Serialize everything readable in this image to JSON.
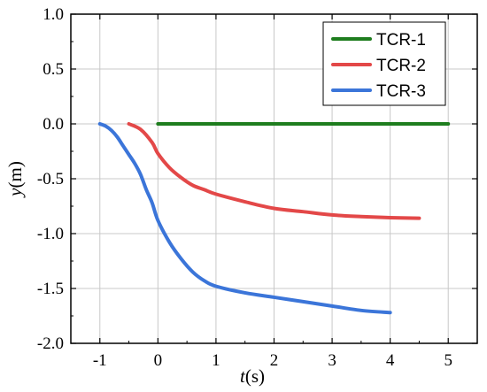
{
  "chart_data": {
    "type": "line",
    "xlabel_var": "t",
    "xlabel_unit": "(s)",
    "ylabel_var": "y",
    "ylabel_unit": "(m)",
    "xlim": [
      -1.5,
      5.5
    ],
    "ylim": [
      -2.0,
      1.0
    ],
    "xticks": [
      -1,
      0,
      1,
      2,
      3,
      4,
      5
    ],
    "yticks": [
      1.0,
      0.5,
      0.0,
      -0.5,
      -1.0,
      -1.5,
      -2.0
    ],
    "xtick_labels": [
      "-1",
      "0",
      "1",
      "2",
      "3",
      "4",
      "5"
    ],
    "ytick_labels": [
      "1.0",
      "0.5",
      "0.0",
      "-0.5",
      "-1.0",
      "-1.5",
      "-2.0"
    ],
    "grid": true,
    "legend_position": "top-right",
    "series": [
      {
        "name": "TCR-1",
        "color": "#1e7d1e",
        "x": [
          0,
          1,
          2,
          3,
          4,
          5
        ],
        "y": [
          0,
          0,
          0,
          0,
          0,
          0
        ]
      },
      {
        "name": "TCR-2",
        "color": "#e34848",
        "x": [
          -0.5,
          -0.3,
          -0.1,
          0,
          0.2,
          0.4,
          0.6,
          0.8,
          1.0,
          1.5,
          2.0,
          2.5,
          3.0,
          3.5,
          4.0,
          4.5
        ],
        "y": [
          0,
          -0.05,
          -0.17,
          -0.27,
          -0.4,
          -0.49,
          -0.56,
          -0.6,
          -0.64,
          -0.71,
          -0.77,
          -0.8,
          -0.83,
          -0.845,
          -0.855,
          -0.86
        ]
      },
      {
        "name": "TCR-3",
        "color": "#3b75d9",
        "x": [
          -1.0,
          -0.9,
          -0.8,
          -0.7,
          -0.6,
          -0.5,
          -0.4,
          -0.3,
          -0.2,
          -0.1,
          0,
          0.2,
          0.4,
          0.6,
          0.8,
          1.0,
          1.5,
          2.0,
          2.5,
          3.0,
          3.5,
          4.0
        ],
        "y": [
          0,
          -0.02,
          -0.06,
          -0.12,
          -0.2,
          -0.28,
          -0.36,
          -0.46,
          -0.6,
          -0.72,
          -0.88,
          -1.08,
          -1.23,
          -1.35,
          -1.43,
          -1.48,
          -1.54,
          -1.58,
          -1.62,
          -1.66,
          -1.7,
          -1.72
        ]
      }
    ]
  }
}
